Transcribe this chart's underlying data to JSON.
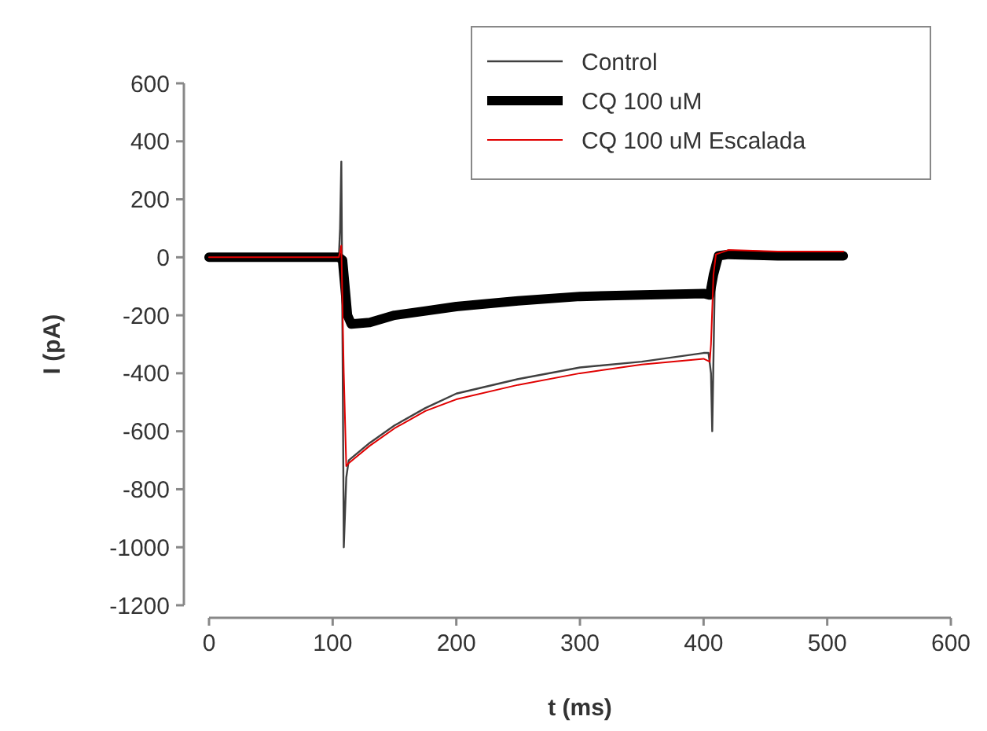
{
  "chart_data": {
    "type": "line",
    "xlabel": "t (ms)",
    "ylabel": "I (pA)",
    "xlim": [
      0,
      600
    ],
    "xticks": [
      0,
      100,
      200,
      300,
      400,
      500,
      600
    ],
    "ylim": [
      -1200,
      600
    ],
    "yticks": [
      -1200,
      -1000,
      -800,
      -600,
      -400,
      -200,
      0,
      200,
      400,
      600
    ],
    "grid": false,
    "legend": "top right",
    "line_style": "solid",
    "marker": "none",
    "series": [
      {
        "name": "Control",
        "color": "#404040",
        "x": [
          0,
          50,
          105,
          106,
          107,
          108,
          109,
          111,
          113,
          130,
          150,
          175,
          200,
          250,
          300,
          350,
          400,
          404,
          406,
          407,
          409,
          412,
          420,
          460,
          500,
          513
        ],
        "values": [
          0,
          0,
          0,
          100,
          330,
          -300,
          -1000,
          -760,
          -700,
          -640,
          -580,
          -520,
          -470,
          -420,
          -380,
          -360,
          -330,
          -330,
          -400,
          -600,
          -100,
          0,
          15,
          10,
          10,
          10
        ]
      },
      {
        "name": "CQ 100 uM",
        "color": "#000000",
        "x": [
          0,
          50,
          105,
          108,
          112,
          115,
          130,
          150,
          175,
          200,
          250,
          300,
          350,
          400,
          405,
          408,
          412,
          420,
          460,
          500,
          513
        ],
        "values": [
          0,
          0,
          0,
          -10,
          -200,
          -230,
          -225,
          -200,
          -185,
          -170,
          -150,
          -135,
          -130,
          -125,
          -130,
          -60,
          5,
          10,
          5,
          5,
          5
        ]
      },
      {
        "name": "CQ 100 uM Escalada",
        "color": "#e00000",
        "x": [
          0,
          50,
          105,
          107,
          109,
          111,
          113,
          130,
          150,
          175,
          200,
          250,
          300,
          350,
          400,
          405,
          406,
          408,
          410,
          420,
          460,
          500,
          513
        ],
        "values": [
          0,
          0,
          0,
          40,
          -400,
          -720,
          -710,
          -650,
          -590,
          -530,
          -490,
          -440,
          -400,
          -370,
          -350,
          -360,
          -300,
          -60,
          10,
          25,
          20,
          20,
          20
        ]
      }
    ]
  }
}
